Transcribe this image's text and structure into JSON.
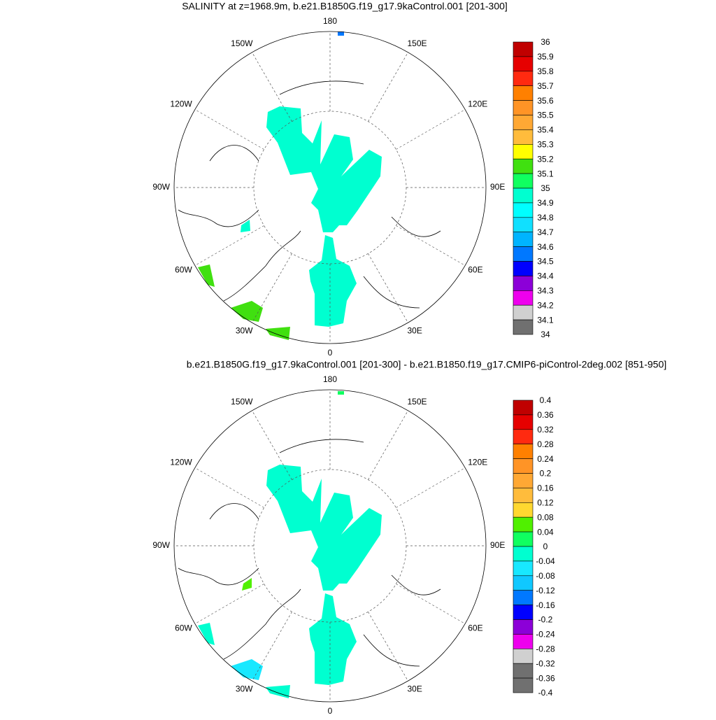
{
  "lon_ticks": [
    180,
    {
      "value": 150,
      "label": "150E"
    },
    {
      "value": 120,
      "label": "120E"
    },
    {
      "value": 90,
      "label": "90E"
    },
    {
      "value": 60,
      "label": "60E"
    },
    {
      "value": 30,
      "label": "30E"
    },
    0,
    {
      "value": -30,
      "label": "30W"
    },
    {
      "value": -60,
      "label": "60W"
    },
    {
      "value": -90,
      "label": "90W"
    },
    {
      "value": -120,
      "label": "120W"
    },
    {
      "value": -150,
      "label": "150W"
    }
  ],
  "panels": [
    {
      "title": "SALINITY at z=1968.9m, b.e21.B1850G.f19_g17.9kaControl.001 [201-300]",
      "colorbar": {
        "levels": [
          36,
          35.9,
          35.8,
          35.7,
          35.6,
          35.5,
          35.4,
          35.3,
          35.2,
          35.1,
          35,
          34.9,
          34.8,
          34.7,
          34.6,
          34.5,
          34.4,
          34.3,
          34.2,
          34.1,
          34
        ],
        "colors": [
          "#c00000",
          "#e60000",
          "#ff2a10",
          "#ff8000",
          "#ff9426",
          "#ffa834",
          "#ffbc3c",
          "#ffff00",
          "#40e010",
          "#10ff60",
          "#00ffd0",
          "#00ffff",
          "#10e0ff",
          "#00b4ff",
          "#0078ff",
          "#0000ff",
          "#8c00d8",
          "#ee00ee",
          "#d0d0d0",
          "#707070"
        ]
      }
    },
    {
      "title": "b.e21.B1850G.f19_g17.9kaControl.001 [201-300] - b.e21.B1850.f19_g17.CMIP6-piControl-2deg.002 [851-950]",
      "colorbar": {
        "levels": [
          0.4,
          0.36,
          0.32,
          0.28,
          0.24,
          0.2,
          0.16,
          0.12,
          0.08,
          0.04,
          0,
          -0.04,
          -0.08,
          -0.12,
          -0.16,
          -0.2,
          -0.24,
          -0.28,
          -0.32,
          -0.36,
          -0.4
        ],
        "colors": [
          "#c00000",
          "#e60000",
          "#ff2a10",
          "#ff8000",
          "#ff9426",
          "#ffa834",
          "#ffbc3c",
          "#ffd830",
          "#50f000",
          "#10ff60",
          "#00ffd0",
          "#18e8ff",
          "#10c8ff",
          "#0078ff",
          "#0000ff",
          "#8c00d8",
          "#ee00ee",
          "#d0d0d0",
          "#707070",
          "#707070"
        ]
      }
    }
  ]
}
